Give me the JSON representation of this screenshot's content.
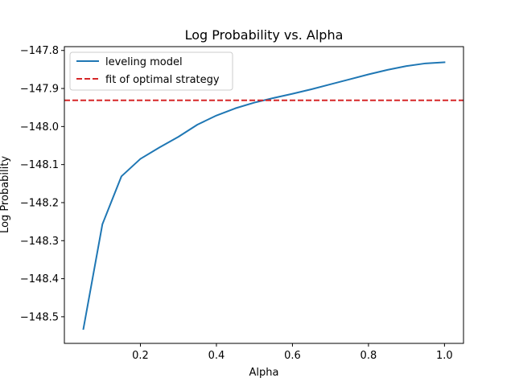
{
  "chart_data": {
    "type": "line",
    "title": "Log Probability vs. Alpha",
    "xlabel": "Alpha",
    "ylabel": "Log Probability",
    "xlim": [
      0.0,
      1.05
    ],
    "ylim": [
      -148.57,
      -147.79
    ],
    "xticks": [
      0.2,
      0.4,
      0.6,
      0.8,
      1.0
    ],
    "xtick_labels": [
      "0.2",
      "0.4",
      "0.6",
      "0.8",
      "1.0"
    ],
    "yticks": [
      -148.5,
      -148.4,
      -148.3,
      -148.2,
      -148.1,
      -148.0,
      -147.9,
      -147.8
    ],
    "ytick_labels": [
      "−148.5",
      "−148.4",
      "−148.3",
      "−148.2",
      "−148.1",
      "−148.0",
      "−147.9",
      "−147.8"
    ],
    "grid": false,
    "legend_position": "top-left",
    "series": [
      {
        "name": "leveling model",
        "color": "#1f77b4",
        "style": "solid",
        "x": [
          0.05,
          0.1,
          0.15,
          0.2,
          0.25,
          0.3,
          0.35,
          0.4,
          0.45,
          0.5,
          0.55,
          0.6,
          0.65,
          0.7,
          0.75,
          0.8,
          0.85,
          0.9,
          0.95,
          1.0
        ],
        "y": [
          -148.532,
          -148.257,
          -148.131,
          -148.085,
          -148.055,
          -148.027,
          -147.995,
          -147.971,
          -147.952,
          -147.937,
          -147.925,
          -147.914,
          -147.902,
          -147.889,
          -147.876,
          -147.863,
          -147.851,
          -147.841,
          -147.834,
          -147.831
        ]
      },
      {
        "name": "fit of optimal strategy",
        "color": "#d62728",
        "style": "dashed",
        "type": "hline",
        "y": -147.931
      }
    ]
  }
}
